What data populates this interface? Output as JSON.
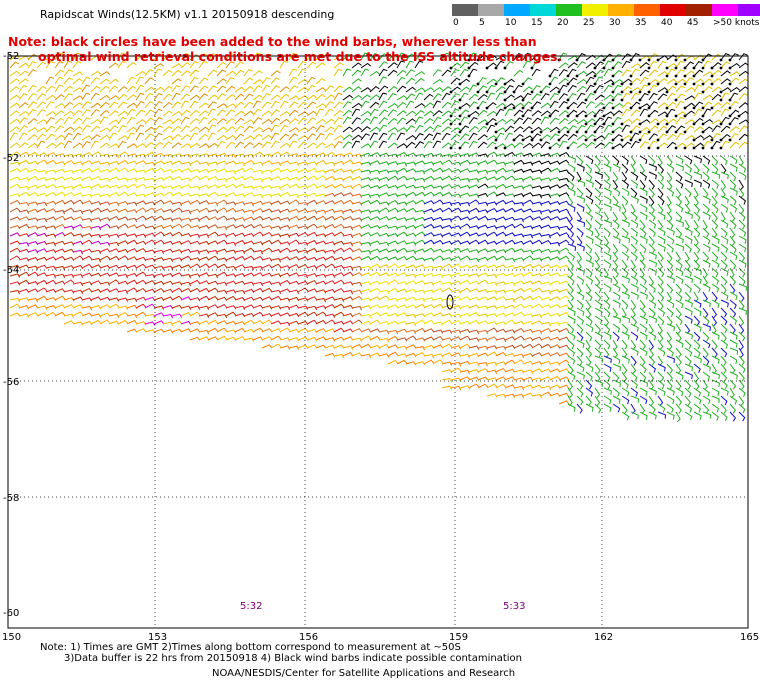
{
  "title": "Rapidscat Winds(12.5KM) v1.1 20150918 descending",
  "note": {
    "line1": "Note: black circles have been added to the wind barbs, wherever less than",
    "line2": "optimal wind retrieval conditions are met due to the ISS altitude changes."
  },
  "legend": {
    "labels": [
      "0",
      "5",
      "10",
      "15",
      "20",
      "25",
      "30",
      "35",
      "40",
      "45",
      ">50 knots"
    ],
    "colors": [
      "#606060",
      "#a8a8a8",
      "#00a8ff",
      "#00d8d8",
      "#20c020",
      "#f0f000",
      "#ffb000",
      "#ff6000",
      "#e00000",
      "#a02000",
      "#ff00ff",
      "#a000ff"
    ]
  },
  "map": {
    "lat_labels": [
      "-52",
      "-54",
      "-56",
      "-58",
      "-60"
    ],
    "lon_labels": [
      "150",
      "153",
      "156",
      "159",
      "162",
      "165"
    ],
    "lat_range": [
      -60,
      -50
    ],
    "lon_range": [
      150,
      165
    ],
    "time_labels": [
      {
        "text": "5:32",
        "lon": 154.6
      },
      {
        "text": "5:33",
        "lon": 160.1
      }
    ]
  },
  "footnotes": {
    "line1": "Note: 1) Times are GMT 2)Times along bottom correspond to measurement at ~50S",
    "line2": "3)Data buffer is 22 hrs from 20150918 4) Black wind barbs indicate possible contamination",
    "credit": "NOAA/NESDIS/Center for Satellite Applications and Research"
  }
}
